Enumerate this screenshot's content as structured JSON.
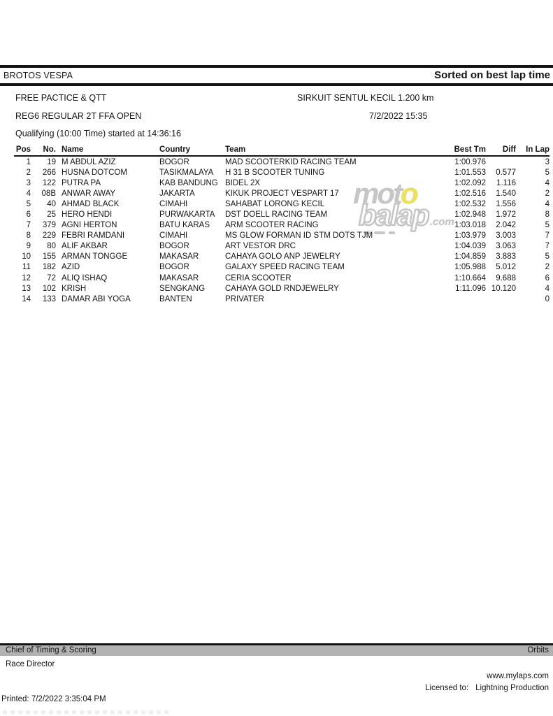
{
  "report": {
    "club": "BROTOS VESPA",
    "sorted_label": "Sorted on best lap time",
    "session_name": "FREE PACTICE & QTT",
    "circuit": "SIRKUIT SENTUL KECIL 1.200 km",
    "class_name": "REG6 REGULAR 2T FFA OPEN",
    "session_datetime": "7/2/2022 15:35",
    "session_detail": "Qualifying (10:00 Time) started at 14:36:16"
  },
  "table": {
    "columns": [
      "Pos",
      "No.",
      "Name",
      "Country",
      "Team",
      "Best Tm",
      "Diff",
      "In Lap"
    ],
    "rows": [
      {
        "pos": "1",
        "no": "19",
        "name": "M ABDUL AZIZ",
        "country": "BOGOR",
        "team": "MAD SCOOTERKID RACING TEAM",
        "best_tm": "1:00.976",
        "diff": "",
        "in_lap": "3"
      },
      {
        "pos": "2",
        "no": "266",
        "name": "HUSNA DOTCOM",
        "country": "TASIKMALAYA",
        "team": "H 31 B SCOOTER TUNING",
        "best_tm": "1:01.553",
        "diff": "0.577",
        "in_lap": "5"
      },
      {
        "pos": "3",
        "no": "122",
        "name": "PUTRA PA",
        "country": "KAB BANDUNG",
        "team": "BIDEL 2X",
        "best_tm": "1:02.092",
        "diff": "1.116",
        "in_lap": "4"
      },
      {
        "pos": "4",
        "no": "08B",
        "name": "ANWAR AWAY",
        "country": "JAKARTA",
        "team": "KIKUK PROJECT VESPART 17",
        "best_tm": "1:02.516",
        "diff": "1.540",
        "in_lap": "2"
      },
      {
        "pos": "5",
        "no": "40",
        "name": "AHMAD BLACK",
        "country": "CIMAHI",
        "team": "SAHABAT LORONG KECIL",
        "best_tm": "1:02.532",
        "diff": "1.556",
        "in_lap": "4"
      },
      {
        "pos": "6",
        "no": "25",
        "name": "HERO HENDI",
        "country": "PURWAKARTA",
        "team": "DST DOELL RACING TEAM",
        "best_tm": "1:02.948",
        "diff": "1.972",
        "in_lap": "8"
      },
      {
        "pos": "7",
        "no": "379",
        "name": "AGNI HERTON",
        "country": "BATU KARAS",
        "team": "ARM SCOOTER RACING",
        "best_tm": "1:03.018",
        "diff": "2.042",
        "in_lap": "5"
      },
      {
        "pos": "8",
        "no": "229",
        "name": "FEBRI RAMDANI",
        "country": "CIMAHI",
        "team": "MS GLOW FORMAN ID STM DOTS TJM",
        "best_tm": "1:03.979",
        "diff": "3.003",
        "in_lap": "7"
      },
      {
        "pos": "9",
        "no": "80",
        "name": "ALIF AKBAR",
        "country": "BOGOR",
        "team": "ART VESTOR DRC",
        "best_tm": "1:04.039",
        "diff": "3.063",
        "in_lap": "7"
      },
      {
        "pos": "10",
        "no": "155",
        "name": "ARMAN TONGGE",
        "country": "MAKASAR",
        "team": "CAHAYA GOLO ANP JEWELRY",
        "best_tm": "1:04.859",
        "diff": "3.883",
        "in_lap": "5"
      },
      {
        "pos": "11",
        "no": "182",
        "name": "AZID",
        "country": "BOGOR",
        "team": "GALAXY SPEED RACING TEAM",
        "best_tm": "1:05.988",
        "diff": "5.012",
        "in_lap": "2"
      },
      {
        "pos": "12",
        "no": "72",
        "name": "ALIQ ISHAQ",
        "country": "MAKASAR",
        "team": "CERIA SCOOTER",
        "best_tm": "1:10.664",
        "diff": "9.688",
        "in_lap": "6"
      },
      {
        "pos": "13",
        "no": "102",
        "name": "KRISH",
        "country": "SENGKANG",
        "team": "CAHAYA GOLD RNDJEWELRY",
        "best_tm": "1:11.096",
        "diff": "10.120",
        "in_lap": "4"
      },
      {
        "pos": "14",
        "no": "133",
        "name": "DAMAR ABI YOGA",
        "country": "BANTEN",
        "team": "PRIVATER",
        "best_tm": "",
        "diff": "",
        "in_lap": "0"
      }
    ]
  },
  "watermark": {
    "word1_gray": "mot",
    "word1_yellow": "o",
    "word2": "balap",
    "suffix": ".com",
    "gray_color": "#c6c6c6",
    "yellow_color": "#ece25a"
  },
  "footer": {
    "chief_label": "Chief of Timing & Scoring",
    "brand": "Orbits",
    "race_director_label": "Race Director",
    "website": "www.mylaps.com",
    "licensed_label": "Licensed to:",
    "licensee": "Lightning Production",
    "printed": "Printed: 7/2/2022 3:35:04 PM"
  }
}
